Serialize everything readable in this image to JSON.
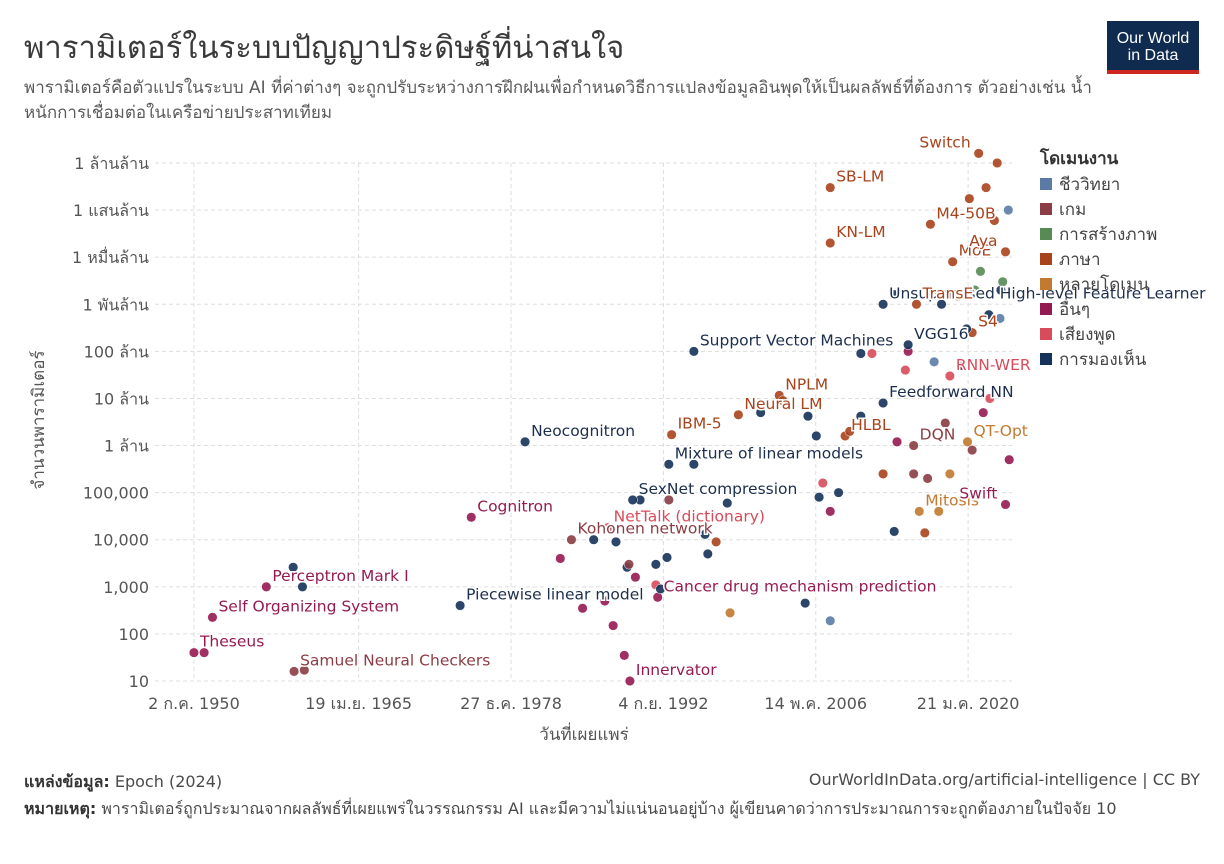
{
  "header": {
    "title": "พารามิเตอร์ในระบบปัญญาประดิษฐ์ที่น่าสนใจ",
    "subtitle": "พารามิเตอร์คือตัวแปรในระบบ AI ที่ค่าต่างๆ จะถูกปรับระหว่างการฝึกฝนเพื่อกำหนดวิธีการแปลงข้อมูลอินพุดให้เป็นผลลัพธ์ที่ต้องการ ตัวอย่างเช่น น้ำหนักการเชื่อมต่อในเครือข่ายประสาทเทียม"
  },
  "logo": {
    "line1": "Our World",
    "line2": "in Data"
  },
  "footer": {
    "source_label": "แหล่งข้อมูล:",
    "source_text": "Epoch (2024)",
    "url": "OurWorldInData.org/artificial-intelligence | CC BY",
    "note_label": "หมายเหตุ:",
    "note_text": "พารามิเตอร์ถูกประมาณจากผลลัพธ์ที่เผยแพร่ในวรรณกรรม AI และมีความไม่แน่นอนอยู่บ้าง ผู้เขียนคาดว่าการประมาณการจะถูกต้องภายในปัจจัย 10"
  },
  "chart_data": {
    "type": "scatter",
    "xlabel": "วันที่เผยแพร่",
    "ylabel": "จำนวนพารามิเตอร์",
    "y_scale": "log",
    "ylim": [
      10,
      1000000000000
    ],
    "xlim": [
      "1947-01-01",
      "2023-12-31"
    ],
    "grid": true,
    "legend_position": "right",
    "legend_title": "โดเมนงาน",
    "x_ticks": [
      {
        "date": "1950-07-02",
        "label": "2 ก.ค. 1950"
      },
      {
        "date": "1965-04-19",
        "label": "19 เม.ย. 1965"
      },
      {
        "date": "1978-12-27",
        "label": "27 ธ.ค. 1978"
      },
      {
        "date": "1992-09-04",
        "label": "4 ก.ย. 1992"
      },
      {
        "date": "2006-05-14",
        "label": "14 พ.ค. 2006"
      },
      {
        "date": "2020-01-21",
        "label": "21 ม.ค. 2020"
      }
    ],
    "y_ticks": [
      {
        "value": 10,
        "label": "10"
      },
      {
        "value": 100,
        "label": "100"
      },
      {
        "value": 1000,
        "label": "1,000"
      },
      {
        "value": 10000,
        "label": "10,000"
      },
      {
        "value": 100000,
        "label": "100,000"
      },
      {
        "value": 1000000,
        "label": "1 ล้าน"
      },
      {
        "value": 10000000,
        "label": "10 ล้าน"
      },
      {
        "value": 100000000,
        "label": "100 ล้าน"
      },
      {
        "value": 1000000000,
        "label": "1 พันล้าน"
      },
      {
        "value": 10000000000,
        "label": "1 หมื่นล้าน"
      },
      {
        "value": 100000000000,
        "label": "1 แสนล้าน"
      },
      {
        "value": 1000000000000,
        "label": "1 ล้านล้าน"
      }
    ],
    "series": [
      {
        "name": "ชีววิทยา",
        "color": "#5b7ba6"
      },
      {
        "name": "เกม",
        "color": "#8a3d44"
      },
      {
        "name": "การสร้างภาพ",
        "color": "#578a55"
      },
      {
        "name": "ภาษา",
        "color": "#a8431c"
      },
      {
        "name": "หลายโดเมน",
        "color": "#c17a2f"
      },
      {
        "name": "อื่นๆ",
        "color": "#961a52"
      },
      {
        "name": "เสียงพูด",
        "color": "#d84b5a"
      },
      {
        "name": "การมองเห็น",
        "color": "#15325a"
      }
    ],
    "points": [
      {
        "label": "Theseus",
        "date": "1950-07-02",
        "params": 40,
        "domain": "อื่นๆ"
      },
      {
        "date": "1951-06-01",
        "params": 40,
        "domain": "อื่นๆ"
      },
      {
        "label": "Self Organizing System",
        "date": "1952-03-01",
        "params": 225,
        "domain": "อื่นๆ"
      },
      {
        "label": "Perceptron Mark I",
        "date": "1957-01-01",
        "params": 1000,
        "domain": "อื่นๆ"
      },
      {
        "date": "1959-06-01",
        "params": 2600,
        "domain": "การมองเห็น"
      },
      {
        "date": "1960-04-01",
        "params": 1000,
        "domain": "การมองเห็น"
      },
      {
        "label": "Samuel Neural Checkers",
        "date": "1959-07-01",
        "params": 16,
        "domain": "เกม"
      },
      {
        "date": "1960-06-01",
        "params": 17,
        "domain": "เกม"
      },
      {
        "label": "Cognitron",
        "date": "1975-06-01",
        "params": 30000,
        "domain": "อื่นๆ"
      },
      {
        "label": "Piecewise linear model",
        "date": "1974-06-01",
        "params": 400,
        "domain": "การมองเห็น"
      },
      {
        "label": "Neocognitron",
        "date": "1980-04-01",
        "params": 1200000,
        "domain": "การมองเห็น"
      },
      {
        "date": "1983-06-01",
        "params": 4000,
        "domain": "อื่นๆ"
      },
      {
        "label": "Kohonen network",
        "date": "1984-06-01",
        "params": 10000,
        "domain": "เกม"
      },
      {
        "date": "1985-06-01",
        "params": 350,
        "domain": "อื่นๆ"
      },
      {
        "date": "1986-06-01",
        "params": 10000,
        "domain": "การมองเห็น"
      },
      {
        "date": "1987-06-01",
        "params": 500,
        "domain": "อื่นๆ"
      },
      {
        "date": "1988-03-01",
        "params": 150,
        "domain": "อื่นๆ"
      },
      {
        "label": "NetTalk (dictionary)",
        "date": "1987-09-01",
        "params": 18000,
        "domain": "เสียงพูด"
      },
      {
        "date": "1988-06-01",
        "params": 9000,
        "domain": "การมองเห็น"
      },
      {
        "date": "1989-06-01",
        "params": 2600,
        "domain": "การมองเห็น"
      },
      {
        "date": "1989-08-01",
        "params": 3000,
        "domain": "เกม"
      },
      {
        "date": "1990-03-01",
        "params": 1600,
        "domain": "อื่นๆ"
      },
      {
        "date": "1990-08-01",
        "params": 70000,
        "domain": "การมองเห็น"
      },
      {
        "label": "Innervator",
        "date": "1989-09-01",
        "params": 10,
        "domain": "อื่นๆ"
      },
      {
        "date": "1989-03-01",
        "params": 35,
        "domain": "อื่นๆ"
      },
      {
        "date": "1992-01-01",
        "params": 1100,
        "domain": "เสียงพูด"
      },
      {
        "date": "1992-01-01",
        "params": 3000,
        "domain": "การมองเห็น"
      },
      {
        "label": "Cancer drug mechanism prediction",
        "date": "1992-03-01",
        "params": 600,
        "domain": "อื่นๆ"
      },
      {
        "date": "1992-06-01",
        "params": 900,
        "domain": "การมองเห็น"
      },
      {
        "date": "1993-01-01",
        "params": 4200,
        "domain": "การมองเห็น"
      },
      {
        "date": "1993-03-01",
        "params": 70000,
        "domain": "เกม"
      },
      {
        "label": "SexNet compression",
        "date": "1989-12-01",
        "params": 70000,
        "domain": "การมองเห็น"
      },
      {
        "label": "Mixture of linear models",
        "date": "1993-03-01",
        "params": 400000,
        "domain": "การมองเห็น"
      },
      {
        "date": "1995-06-01",
        "params": 400000,
        "domain": "การมองเห็น"
      },
      {
        "label": "IBM-5",
        "date": "1993-06-01",
        "params": 1700000,
        "domain": "ภาษา"
      },
      {
        "date": "1996-06-01",
        "params": 13000,
        "domain": "การมองเห็น"
      },
      {
        "date": "1996-09-01",
        "params": 5000,
        "domain": "การมองเห็น"
      },
      {
        "date": "1997-06-01",
        "params": 9000,
        "domain": "ภาษา"
      },
      {
        "date": "1998-06-01",
        "params": 60000,
        "domain": "การมองเห็น"
      },
      {
        "date": "1998-09-01",
        "params": 280,
        "domain": "หลายโดเมน"
      },
      {
        "label": "Support Vector Machines",
        "date": "1995-06-01",
        "params": 100000000,
        "domain": "การมองเห็น"
      },
      {
        "label": "Neural LM",
        "date": "1999-06-01",
        "params": 4500000,
        "domain": "ภาษา"
      },
      {
        "date": "2001-06-01",
        "params": 5000000,
        "domain": "การมองเห็น"
      },
      {
        "label": "NPLM",
        "date": "2003-02-01",
        "params": 11600000,
        "domain": "ภาษา"
      },
      {
        "date": "2003-06-01",
        "params": 9000000,
        "domain": "ภาษา"
      },
      {
        "date": "2005-06-01",
        "params": 450,
        "domain": "การมองเห็น"
      },
      {
        "date": "2005-09-01",
        "params": 4200000,
        "domain": "การมองเห็น"
      },
      {
        "date": "2006-06-01",
        "params": 1600000,
        "domain": "การมองเห็น"
      },
      {
        "date": "2006-09-01",
        "params": 80000,
        "domain": "การมองเห็น"
      },
      {
        "date": "2007-01-01",
        "params": 160000,
        "domain": "เสียงพูด"
      },
      {
        "date": "2007-09-01",
        "params": 190,
        "domain": "ชีววิทยา"
      },
      {
        "date": "2008-06-01",
        "params": 100000,
        "domain": "การมองเห็น"
      },
      {
        "date": "2007-09-01",
        "params": 40000,
        "domain": "อื่นๆ"
      },
      {
        "label": "SB-LM",
        "date": "2007-09-01",
        "params": 300000000000,
        "domain": "ภาษา"
      },
      {
        "label": "KN-LM",
        "date": "2007-09-01",
        "params": 20000000000,
        "domain": "ภาษา"
      },
      {
        "label": "HLBL",
        "date": "2009-01-01",
        "params": 1600000,
        "domain": "ภาษา"
      },
      {
        "date": "2009-06-01",
        "params": 2000000,
        "domain": "ภาษา"
      },
      {
        "date": "2010-06-01",
        "params": 90000000,
        "domain": "การมองเห็น"
      },
      {
        "date": "2010-06-01",
        "params": 4200000,
        "domain": "การมองเห็น"
      },
      {
        "date": "2011-06-01",
        "params": 90000000,
        "domain": "เสียงพูด"
      },
      {
        "label": "Unsupervised High-level Feature Learner",
        "date": "2012-06-01",
        "params": 1000000000,
        "domain": "การมองเห็น"
      },
      {
        "label": "Feedforward NN",
        "date": "2012-06-01",
        "params": 8000000,
        "domain": "การมองเห็น"
      },
      {
        "date": "2012-06-01",
        "params": 250000,
        "domain": "ภาษา"
      },
      {
        "date": "2013-06-01",
        "params": 15000,
        "domain": "การมองเห็น"
      },
      {
        "date": "2013-09-01",
        "params": 1200000,
        "domain": "อื่นๆ"
      },
      {
        "date": "2013-06-01",
        "params": 1600000000,
        "domain": "การมองเห็น"
      },
      {
        "date": "2014-06-01",
        "params": 40000000,
        "domain": "เสียงพูด"
      },
      {
        "date": "2014-09-01",
        "params": 100000000,
        "domain": "อื่นๆ"
      },
      {
        "label": "VGG16",
        "date": "2014-09-01",
        "params": 138000000,
        "domain": "การมองเห็น"
      },
      {
        "label": "TransE",
        "date": "2015-06-01",
        "params": 1000000000,
        "domain": "ภาษา"
      },
      {
        "label": "DQN",
        "date": "2015-03-01",
        "params": 1000000,
        "domain": "เกม"
      },
      {
        "date": "2015-03-01",
        "params": 250000,
        "domain": "เกม"
      },
      {
        "date": "2016-06-01",
        "params": 200000,
        "domain": "เกม"
      },
      {
        "label": "M4-50B",
        "date": "2016-09-01",
        "params": 50000000000,
        "domain": "ภาษา"
      },
      {
        "label": "Mitosis",
        "date": "2015-09-01",
        "params": 40000,
        "domain": "หลายโดเมน"
      },
      {
        "date": "2016-03-01",
        "params": 14000,
        "domain": "ภาษา"
      },
      {
        "date": "2017-01-01",
        "params": 60000000,
        "domain": "ชีววิทยา"
      },
      {
        "label": "RNN-WER",
        "date": "2018-06-01",
        "params": 30000000,
        "domain": "เสียงพูด"
      },
      {
        "label": "MoE",
        "date": "2018-09-01",
        "params": 8000000000,
        "domain": "ภาษา"
      },
      {
        "label": "S4",
        "date": "2020-06-01",
        "params": 250000000,
        "domain": "ภาษา"
      },
      {
        "label": "QT-Opt",
        "date": "2020-01-01",
        "params": 1200000,
        "domain": "หลายโดเมน"
      },
      {
        "label": "Switch",
        "date": "2021-01-01",
        "params": 1600000000000,
        "domain": "ภาษา"
      },
      {
        "label": "Aya",
        "date": "2023-06-01",
        "params": 13000000000,
        "domain": "ภาษา"
      },
      {
        "label": "Swift",
        "date": "2023-06-01",
        "params": 56000,
        "domain": "อื่นๆ"
      },
      {
        "date": "2017-06-01",
        "params": 40000,
        "domain": "หลายโดเมน"
      },
      {
        "date": "2018-06-01",
        "params": 250000,
        "domain": "หลายโดเมน"
      },
      {
        "date": "2019-06-01",
        "params": 50000000,
        "domain": "อื่นๆ"
      },
      {
        "date": "2020-06-01",
        "params": 800000,
        "domain": "เกม"
      },
      {
        "date": "2021-06-01",
        "params": 5000000,
        "domain": "อื่นๆ"
      },
      {
        "date": "2022-06-01",
        "params": 60000000000,
        "domain": "ภาษา"
      },
      {
        "date": "2021-09-01",
        "params": 300000000000,
        "domain": "ภาษา"
      },
      {
        "date": "2022-09-01",
        "params": 1000000000000,
        "domain": "ภาษา"
      },
      {
        "date": "2020-09-01",
        "params": 2000000000,
        "domain": "การสร้างภาพ"
      },
      {
        "date": "2021-03-01",
        "params": 5000000000,
        "domain": "การสร้างภาพ"
      },
      {
        "date": "2022-03-01",
        "params": 20000000000,
        "domain": "การสร้างภาพ"
      },
      {
        "date": "2023-03-01",
        "params": 3000000000,
        "domain": "การสร้างภาพ"
      },
      {
        "date": "2023-09-01",
        "params": 100000000000,
        "domain": "ชีววิทยา"
      },
      {
        "date": "2022-12-01",
        "params": 500000000,
        "domain": "ชีววิทยา"
      },
      {
        "date": "2019-12-01",
        "params": 300000000,
        "domain": "การมองเห็น"
      },
      {
        "date": "2021-12-01",
        "params": 600000000,
        "domain": "การมองเห็น"
      },
      {
        "date": "2023-01-01",
        "params": 2000000000,
        "domain": "การมองเห็น"
      },
      {
        "date": "2019-03-01",
        "params": 1500000000,
        "domain": "ภาษา"
      },
      {
        "date": "2020-03-01",
        "params": 175000000000,
        "domain": "ภาษา"
      },
      {
        "date": "2023-10-01",
        "params": 500000,
        "domain": "อื่นๆ"
      },
      {
        "date": "2022-01-01",
        "params": 10000000,
        "domain": "เสียงพูด"
      },
      {
        "date": "2018-01-01",
        "params": 3000000,
        "domain": "เกม"
      },
      {
        "date": "2017-09-01",
        "params": 1000000000,
        "domain": "การมองเห็น"
      }
    ]
  }
}
